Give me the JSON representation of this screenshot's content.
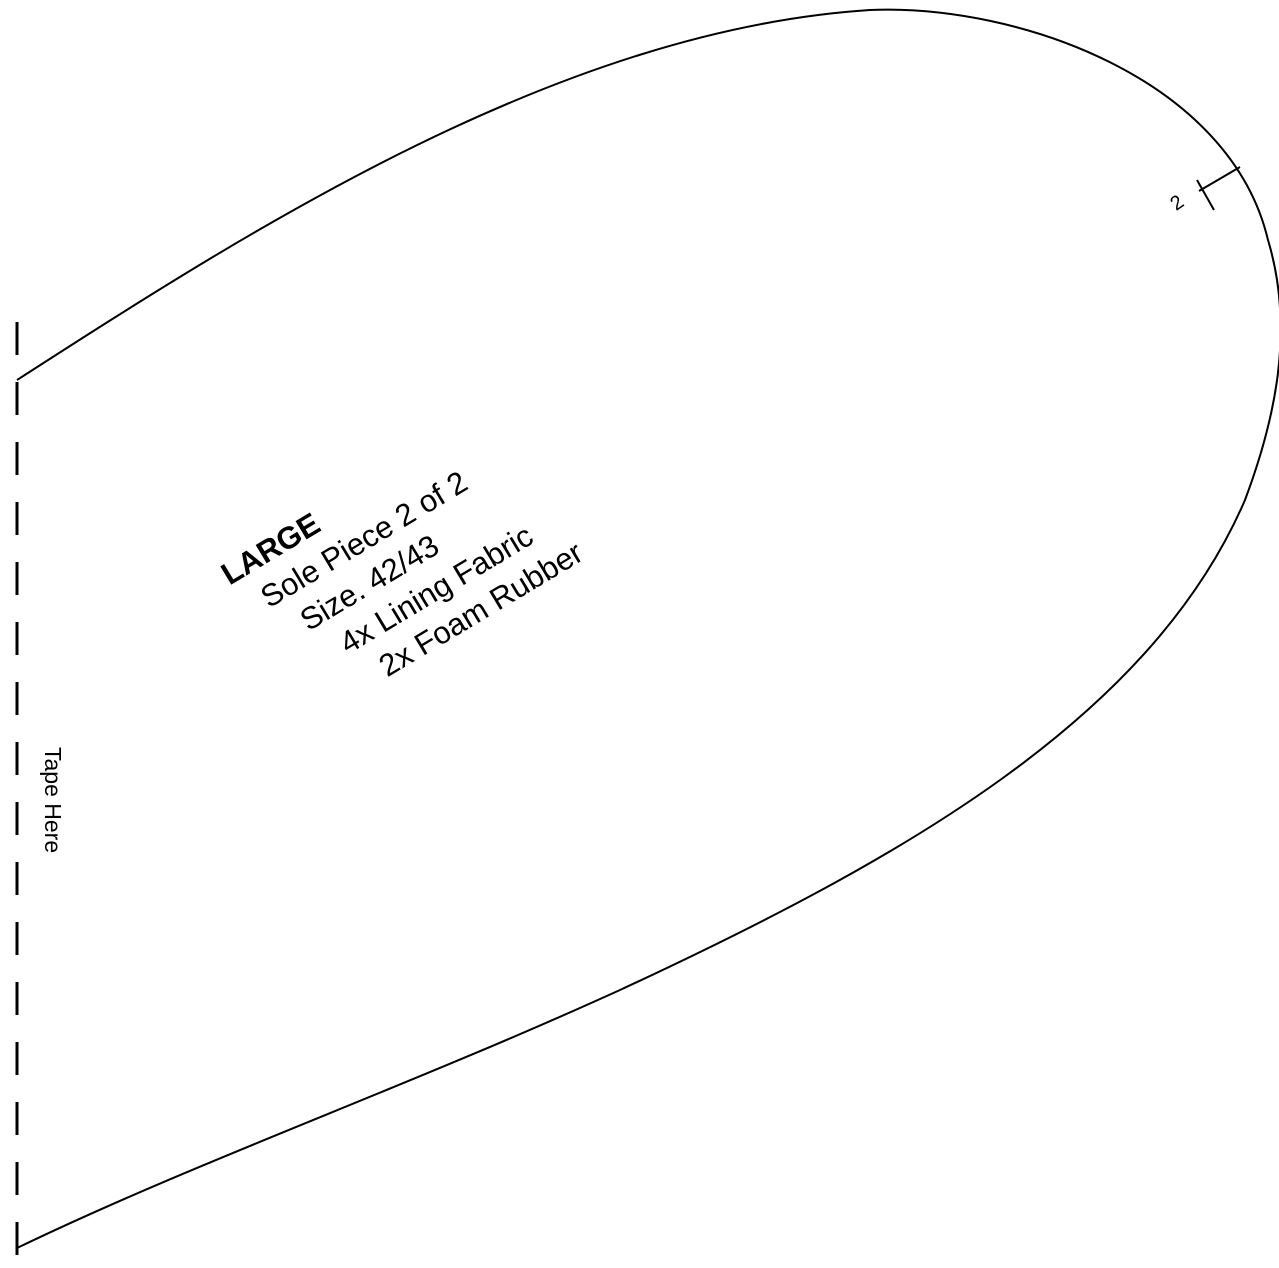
{
  "pattern": {
    "size_class": "LARGE",
    "piece_name": "Sole Piece 2 of 2",
    "size_text": "Size. 42/43",
    "cut_instruction_1": "4x Lining Fabric",
    "cut_instruction_2": "2x Foam Rubber",
    "tape_label": "Tape Here",
    "notch_label": "2",
    "stroke_color": "#000000",
    "background_color": "#ffffff"
  }
}
